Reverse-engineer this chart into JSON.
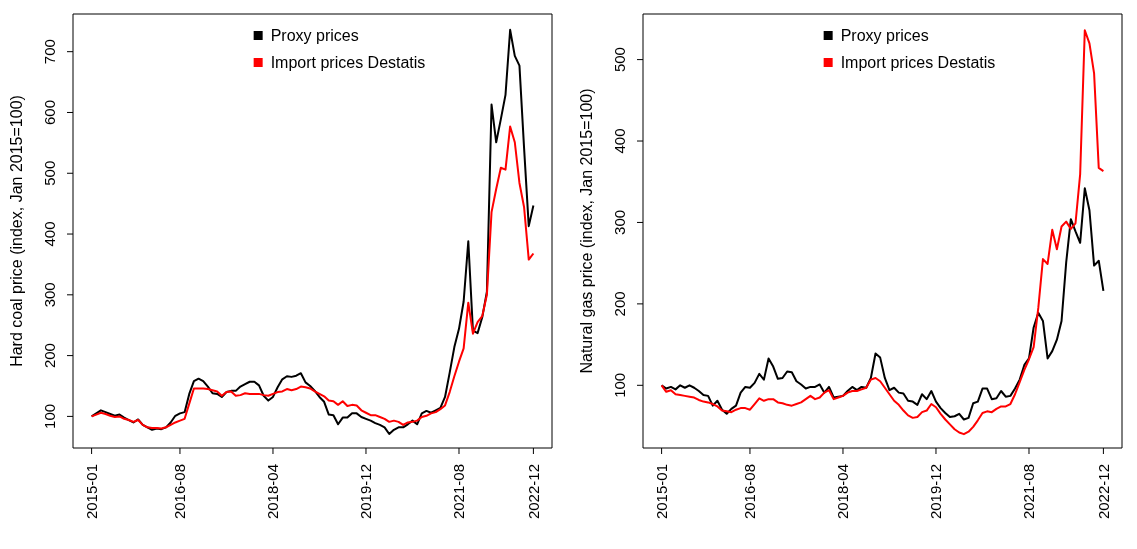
{
  "chart_data": [
    {
      "type": "line",
      "ylabel": "Hard coal price (index, Jan 2015=100)",
      "legend": "top",
      "marker": "none",
      "line_style": "solid",
      "x": [
        "2015-01",
        "2015-02",
        "2015-03",
        "2015-04",
        "2015-05",
        "2015-06",
        "2015-07",
        "2015-08",
        "2015-09",
        "2015-10",
        "2015-11",
        "2015-12",
        "2016-01",
        "2016-02",
        "2016-03",
        "2016-04",
        "2016-05",
        "2016-06",
        "2016-07",
        "2016-08",
        "2016-09",
        "2016-10",
        "2016-11",
        "2016-12",
        "2017-01",
        "2017-02",
        "2017-03",
        "2017-04",
        "2017-05",
        "2017-06",
        "2017-07",
        "2017-08",
        "2017-09",
        "2017-10",
        "2017-11",
        "2017-12",
        "2018-01",
        "2018-02",
        "2018-03",
        "2018-04",
        "2018-05",
        "2018-06",
        "2018-07",
        "2018-08",
        "2018-09",
        "2018-10",
        "2018-11",
        "2018-12",
        "2019-01",
        "2019-02",
        "2019-03",
        "2019-04",
        "2019-05",
        "2019-06",
        "2019-07",
        "2019-08",
        "2019-09",
        "2019-10",
        "2019-11",
        "2019-12",
        "2020-01",
        "2020-02",
        "2020-03",
        "2020-04",
        "2020-05",
        "2020-06",
        "2020-07",
        "2020-08",
        "2020-09",
        "2020-10",
        "2020-11",
        "2020-12",
        "2021-01",
        "2021-02",
        "2021-03",
        "2021-04",
        "2021-05",
        "2021-06",
        "2021-07",
        "2021-08",
        "2021-09",
        "2021-10",
        "2021-11",
        "2021-12",
        "2022-01",
        "2022-02",
        "2022-03",
        "2022-04",
        "2022-05",
        "2022-06",
        "2022-07",
        "2022-08",
        "2022-09",
        "2022-10",
        "2022-11",
        "2022-12"
      ],
      "xlim": [
        "2014-09",
        "2023-04"
      ],
      "xticks": [
        "2015-01",
        "2016-08",
        "2018-04",
        "2019-12",
        "2021-08",
        "2022-12"
      ],
      "ylim": [
        48,
        762
      ],
      "yticks": [
        100,
        200,
        300,
        400,
        500,
        600,
        700
      ],
      "series": [
        {
          "name": "Proxy prices",
          "color": "#000000",
          "values": [
            100,
            105,
            110,
            107,
            104,
            101,
            103,
            98,
            94,
            90,
            95,
            86,
            82,
            78,
            80,
            79,
            82,
            90,
            101,
            105,
            107,
            137,
            158,
            162,
            158,
            149,
            138,
            137,
            132,
            140,
            142,
            142,
            149,
            153,
            157,
            157,
            151,
            134,
            126,
            132,
            148,
            161,
            166,
            165,
            167,
            171,
            156,
            150,
            142,
            132,
            124,
            103,
            102,
            87,
            98,
            98,
            105,
            105,
            99,
            96,
            93,
            89,
            86,
            82,
            71,
            78,
            82,
            82,
            87,
            93,
            87,
            105,
            109,
            106,
            110,
            114,
            132,
            172,
            214,
            244,
            289,
            388,
            241,
            237,
            263,
            305,
            613,
            551,
            589,
            629,
            736,
            693,
            677,
            541,
            413,
            447
          ]
        },
        {
          "name": "Import prices Destatis",
          "color": "#ff0000",
          "values": [
            100,
            103,
            106,
            104,
            101,
            99,
            100,
            96,
            94,
            91,
            94,
            86,
            82,
            81,
            81,
            80,
            82,
            86,
            90,
            93,
            96,
            121,
            146,
            146,
            146,
            145,
            143,
            141,
            134,
            140,
            141,
            134,
            135,
            138,
            137,
            137,
            137,
            135,
            134,
            137,
            140,
            141,
            145,
            143,
            145,
            149,
            148,
            146,
            141,
            137,
            133,
            126,
            125,
            119,
            125,
            117,
            119,
            118,
            110,
            106,
            102,
            102,
            99,
            96,
            91,
            93,
            91,
            86,
            90,
            91,
            93,
            99,
            101,
            105,
            107,
            112,
            118,
            140,
            166,
            190,
            212,
            287,
            236,
            255,
            265,
            300,
            436,
            474,
            509,
            506,
            577,
            551,
            484,
            444,
            358,
            368
          ]
        }
      ]
    },
    {
      "type": "line",
      "ylabel": "Natural gas price (index, Jan 2015=100)",
      "legend": "top",
      "marker": "none",
      "line_style": "solid",
      "x": [
        "2015-01",
        "2015-02",
        "2015-03",
        "2015-04",
        "2015-05",
        "2015-06",
        "2015-07",
        "2015-08",
        "2015-09",
        "2015-10",
        "2015-11",
        "2015-12",
        "2016-01",
        "2016-02",
        "2016-03",
        "2016-04",
        "2016-05",
        "2016-06",
        "2016-07",
        "2016-08",
        "2016-09",
        "2016-10",
        "2016-11",
        "2016-12",
        "2017-01",
        "2017-02",
        "2017-03",
        "2017-04",
        "2017-05",
        "2017-06",
        "2017-07",
        "2017-08",
        "2017-09",
        "2017-10",
        "2017-11",
        "2017-12",
        "2018-01",
        "2018-02",
        "2018-03",
        "2018-04",
        "2018-05",
        "2018-06",
        "2018-07",
        "2018-08",
        "2018-09",
        "2018-10",
        "2018-11",
        "2018-12",
        "2019-01",
        "2019-02",
        "2019-03",
        "2019-04",
        "2019-05",
        "2019-06",
        "2019-07",
        "2019-08",
        "2019-09",
        "2019-10",
        "2019-11",
        "2019-12",
        "2020-01",
        "2020-02",
        "2020-03",
        "2020-04",
        "2020-05",
        "2020-06",
        "2020-07",
        "2020-08",
        "2020-09",
        "2020-10",
        "2020-11",
        "2020-12",
        "2021-01",
        "2021-02",
        "2021-03",
        "2021-04",
        "2021-05",
        "2021-06",
        "2021-07",
        "2021-08",
        "2021-09",
        "2021-10",
        "2021-11",
        "2021-12",
        "2022-01",
        "2022-02",
        "2022-03",
        "2022-04",
        "2022-05",
        "2022-06",
        "2022-07",
        "2022-08",
        "2022-09",
        "2022-10",
        "2022-11",
        "2022-12"
      ],
      "xlim": [
        "2014-09",
        "2023-04"
      ],
      "xticks": [
        "2015-01",
        "2016-08",
        "2018-04",
        "2019-12",
        "2021-08",
        "2022-12"
      ],
      "ylim": [
        23,
        556
      ],
      "yticks": [
        100,
        200,
        300,
        400,
        500
      ],
      "series": [
        {
          "name": "Proxy prices",
          "color": "#000000",
          "values": [
            100,
            96,
            98,
            95,
            100,
            97,
            100,
            97,
            93,
            88,
            87,
            75,
            81,
            70,
            65,
            71,
            75,
            91,
            98,
            97,
            103,
            114,
            107,
            133,
            123,
            108,
            109,
            117,
            116,
            105,
            101,
            96,
            98,
            98,
            101,
            91,
            98,
            85,
            86,
            87,
            93,
            98,
            94,
            98,
            97,
            109,
            139,
            134,
            109,
            94,
            97,
            91,
            90,
            81,
            80,
            76,
            89,
            83,
            93,
            80,
            72,
            66,
            61,
            62,
            65,
            58,
            60,
            78,
            80,
            96,
            96,
            83,
            84,
            93,
            86,
            87,
            96,
            107,
            125,
            133,
            171,
            189,
            179,
            133,
            142,
            156,
            179,
            251,
            304,
            289,
            275,
            342,
            315,
            247,
            253,
            216
          ]
        },
        {
          "name": "Import prices Destatis",
          "color": "#ff0000",
          "values": [
            100,
            92,
            94,
            89,
            88,
            87,
            86,
            85,
            82,
            80,
            79,
            77,
            74,
            69,
            68,
            67,
            70,
            72,
            72,
            70,
            77,
            84,
            81,
            83,
            83,
            79,
            78,
            76,
            75,
            77,
            79,
            83,
            87,
            83,
            85,
            91,
            94,
            83,
            85,
            87,
            91,
            93,
            93,
            95,
            97,
            107,
            109,
            105,
            97,
            89,
            81,
            76,
            69,
            63,
            60,
            61,
            67,
            69,
            77,
            73,
            65,
            58,
            52,
            46,
            42,
            40,
            43,
            49,
            57,
            66,
            68,
            67,
            71,
            74,
            74,
            77,
            89,
            104,
            119,
            132,
            147,
            195,
            255,
            249,
            291,
            267,
            295,
            301,
            292,
            299,
            359,
            536,
            520,
            483,
            367,
            363
          ]
        }
      ]
    }
  ]
}
